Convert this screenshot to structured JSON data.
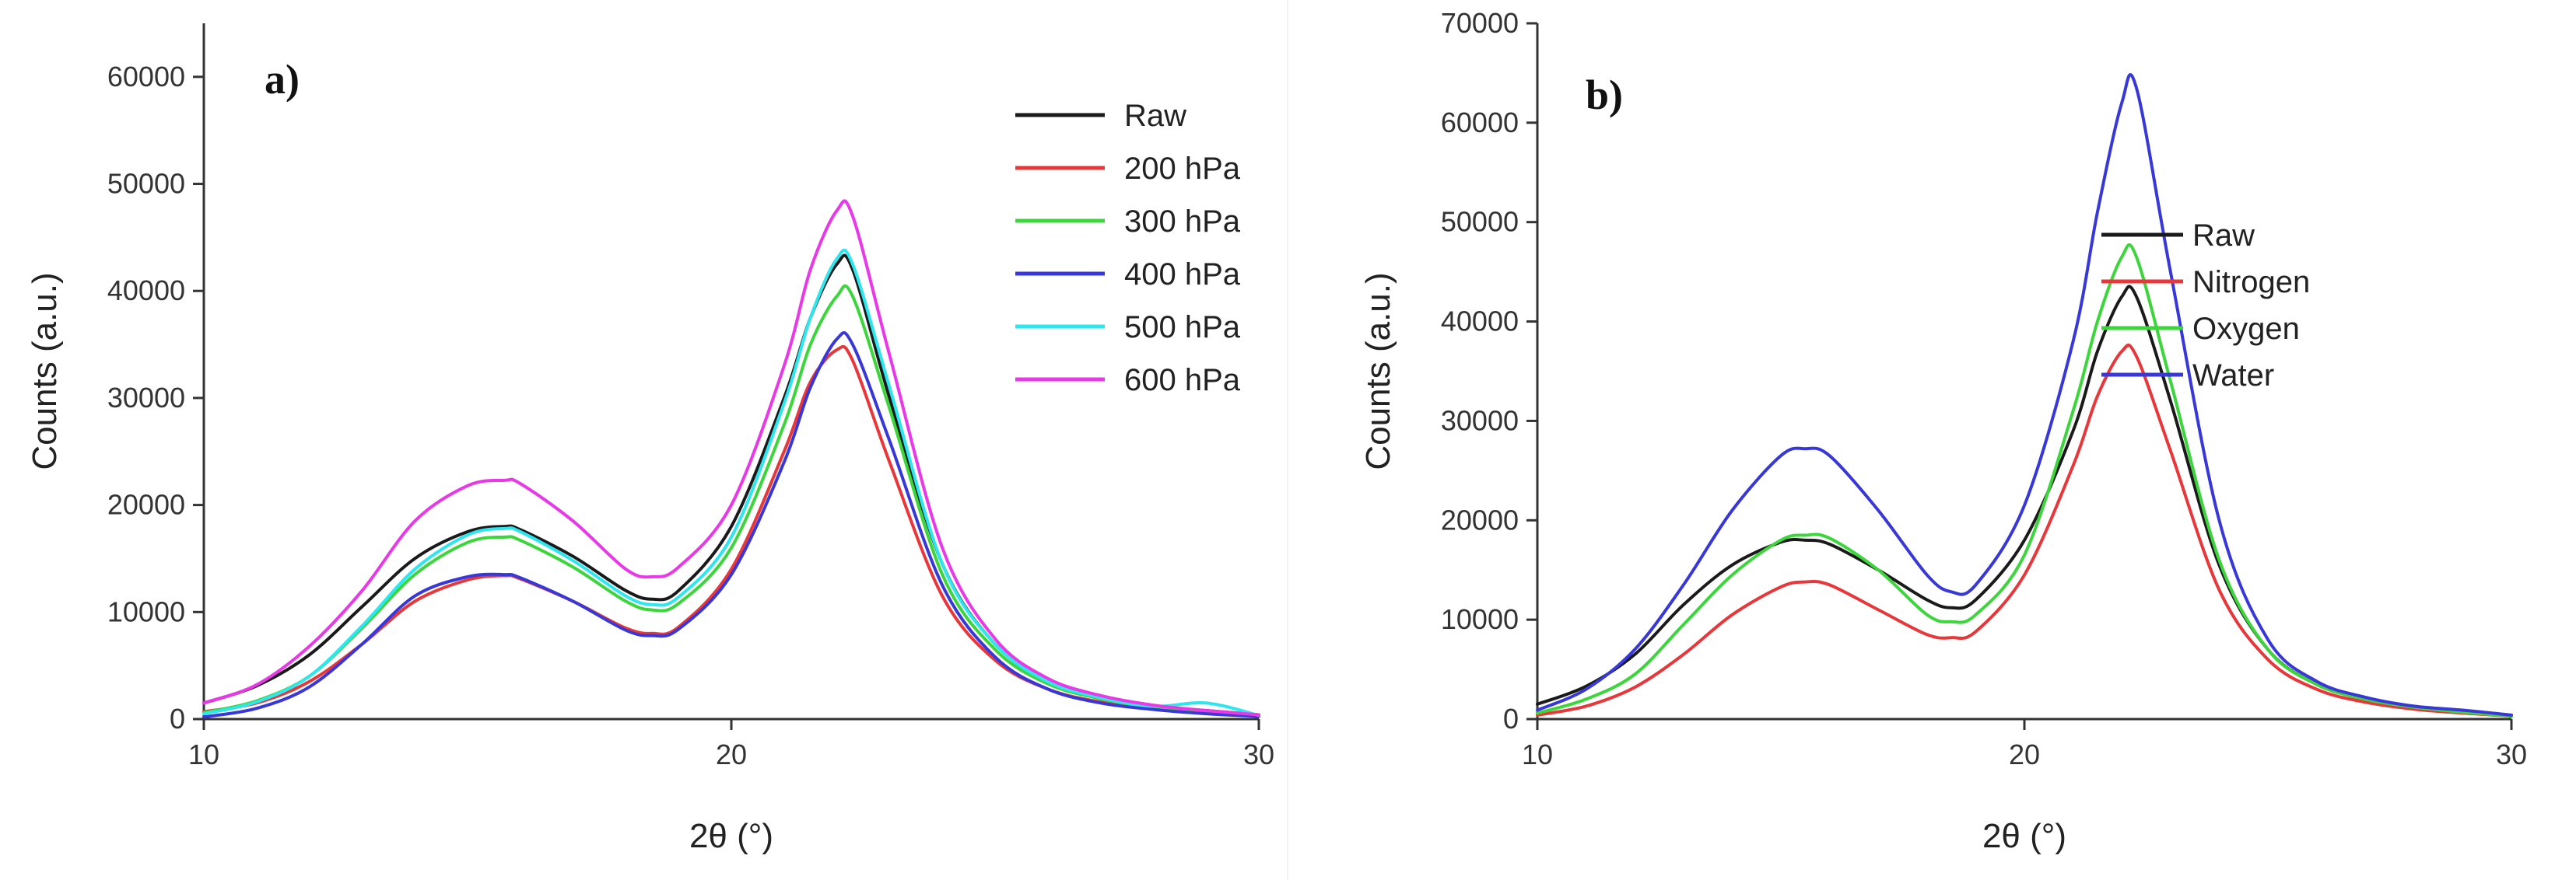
{
  "chart_data": [
    {
      "type": "line",
      "panel_label": "a)",
      "xlabel": "2θ (°)",
      "ylabel": "Counts (a.u.)",
      "xlim": [
        10,
        30
      ],
      "ylim": [
        0,
        65000
      ],
      "xticks": [
        10,
        20,
        30
      ],
      "yticks": [
        0,
        10000,
        20000,
        30000,
        40000,
        50000,
        60000
      ],
      "grid": false,
      "legend_position": "top-right",
      "x": [
        10,
        11,
        12,
        13,
        14,
        15,
        15.7,
        16,
        17,
        18,
        18.5,
        19,
        20,
        21,
        21.5,
        22,
        22.3,
        23,
        24,
        25,
        26,
        27,
        28,
        29,
        30
      ],
      "series": [
        {
          "name": "Raw",
          "color": "#1a1a1a",
          "values": [
            1500,
            3100,
            6000,
            10500,
            15000,
            17500,
            18000,
            17700,
            15200,
            12000,
            11200,
            12000,
            18000,
            30000,
            37500,
            42500,
            42000,
            30000,
            14500,
            7000,
            3500,
            2000,
            1200,
            800,
            400
          ]
        },
        {
          "name": "200 hPa",
          "color": "#e8373a",
          "values": [
            700,
            1500,
            3500,
            7000,
            11000,
            13000,
            13400,
            13100,
            11000,
            8500,
            8000,
            8600,
            14000,
            25000,
            31500,
            34500,
            33500,
            24000,
            11500,
            5500,
            2800,
            1600,
            1000,
            600,
            300
          ]
        },
        {
          "name": "300 hPa",
          "color": "#3cd63c",
          "values": [
            600,
            1700,
            4000,
            8500,
            13500,
            16500,
            17000,
            16700,
            14200,
            11000,
            10200,
            10800,
            16000,
            27500,
            35000,
            39500,
            39500,
            29000,
            13500,
            6500,
            3300,
            1900,
            1100,
            700,
            350
          ]
        },
        {
          "name": "400 hPa",
          "color": "#3838d8",
          "values": [
            200,
            1000,
            3000,
            7000,
            11500,
            13300,
            13500,
            13200,
            11000,
            8300,
            7800,
            8400,
            13500,
            24000,
            31000,
            35500,
            35000,
            26000,
            12500,
            5800,
            2800,
            1500,
            900,
            500,
            250
          ]
        },
        {
          "name": "500 hPa",
          "color": "#2ee6ee",
          "values": [
            500,
            1600,
            4000,
            8700,
            14000,
            17200,
            17800,
            17500,
            14800,
            11500,
            10700,
            11400,
            17000,
            29500,
            37500,
            43000,
            42500,
            31000,
            14500,
            7000,
            3500,
            2000,
            1200,
            1500,
            350
          ]
        },
        {
          "name": "600 hPa",
          "color": "#e838e8",
          "values": [
            1500,
            3200,
            6800,
            12000,
            18500,
            21800,
            22300,
            22000,
            18500,
            14000,
            13300,
            14200,
            20000,
            33000,
            42000,
            47500,
            47000,
            34000,
            16000,
            7500,
            3800,
            2200,
            1300,
            800,
            400
          ]
        }
      ]
    },
    {
      "type": "line",
      "panel_label": "b)",
      "xlabel": "2θ (°)",
      "ylabel": "Counts (a.u.)",
      "xlim": [
        10,
        30
      ],
      "ylim": [
        0,
        70000
      ],
      "xticks": [
        10,
        20,
        30
      ],
      "yticks": [
        0,
        10000,
        20000,
        30000,
        40000,
        50000,
        60000,
        70000
      ],
      "grid": false,
      "legend_position": "center-right",
      "x": [
        10,
        11,
        12,
        13,
        14,
        15,
        15.5,
        16,
        17,
        18,
        18.5,
        19,
        20,
        21,
        21.5,
        22,
        22.3,
        23,
        24,
        25,
        26,
        27,
        28,
        29,
        30
      ],
      "series": [
        {
          "name": "Raw",
          "color": "#1a1a1a",
          "values": [
            1500,
            3300,
            6500,
            11500,
            15500,
            17800,
            18000,
            17600,
            15000,
            12000,
            11200,
            12000,
            18000,
            29000,
            37000,
            42500,
            42500,
            32000,
            15500,
            7000,
            3500,
            2000,
            1200,
            700,
            300
          ]
        },
        {
          "name": "Nitrogen",
          "color": "#e8373a",
          "values": [
            400,
            1300,
            3200,
            6500,
            10500,
            13300,
            13800,
            13500,
            11000,
            8500,
            8200,
            8800,
            14500,
            25500,
            32500,
            37000,
            36500,
            27000,
            13000,
            6000,
            3000,
            1700,
            1000,
            600,
            300
          ]
        },
        {
          "name": "Oxygen",
          "color": "#3cd63c",
          "values": [
            600,
            2000,
            4500,
            9500,
            14500,
            18000,
            18500,
            18200,
            15000,
            10500,
            9800,
            10500,
            16500,
            31000,
            40000,
            46500,
            46500,
            34000,
            16000,
            7000,
            3500,
            2000,
            1200,
            700,
            300
          ]
        },
        {
          "name": "Water",
          "color": "#3838d8",
          "values": [
            900,
            3000,
            7000,
            13500,
            21000,
            26500,
            27200,
            26500,
            21000,
            14500,
            12800,
            13500,
            21500,
            38000,
            51000,
            62000,
            63500,
            45000,
            20000,
            8000,
            3800,
            2200,
            1300,
            900,
            400
          ]
        }
      ]
    }
  ]
}
